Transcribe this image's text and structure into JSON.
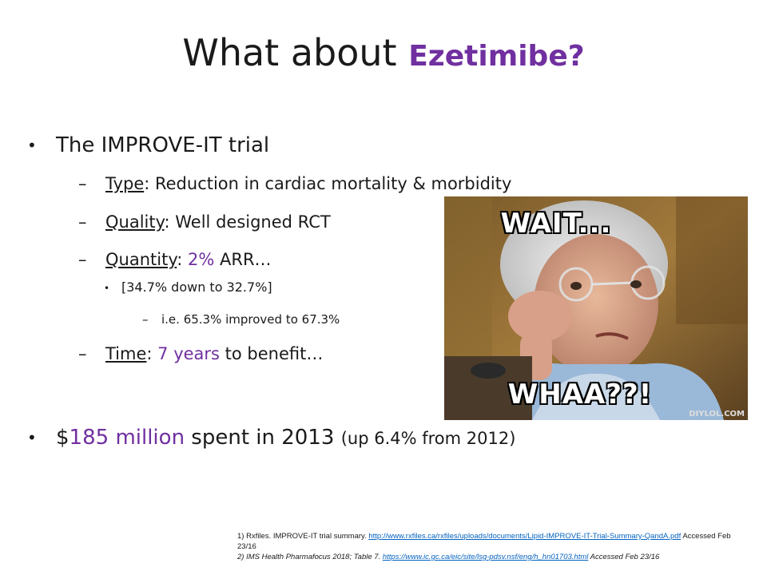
{
  "title": {
    "main": "What about ",
    "accent": "Ezetimibe?"
  },
  "bullets": {
    "trial": "The IMPROVE-IT trial",
    "type_label": "Type",
    "type_text": ": Reduction in cardiac mortality & morbidity",
    "quality_label": "Quality",
    "quality_text": ": Well designed RCT",
    "quantity_label": "Quantity",
    "quantity_sep": ": ",
    "quantity_value": "2%",
    "quantity_text": " ARR…",
    "sub_range": "[34.7% down to 32.7%]",
    "sub_ie": "i.e. 65.3% improved to 67.3%",
    "time_label": "Time",
    "time_sep": ":  ",
    "time_value": "7 years",
    "time_text": " to benefit…",
    "spend_dollar": "$",
    "spend_value": "185 million",
    "spend_text": " spent in 2013 ",
    "spend_note": "(up 6.4% from 2012)"
  },
  "meme": {
    "top_text": "WAIT...",
    "bottom_text": "WHAA??!",
    "watermark": "DIYLOL.COM"
  },
  "references": {
    "ref1_text": "1) Rxfiles. IMPROVE-IT trial summary.  ",
    "ref1_link": "http://www.rxfiles.ca/rxfiles/uploads/documents/Lipid-IMPROVE-IT-Trial-Summary-QandA.pdf",
    "ref1_accessed": "  Accessed Feb 23/16",
    "ref2_text": "2) IMS Health Pharmafocus 2018;  Table 7.  ",
    "ref2_link": "https://www.ic.gc.ca/eic/site/lsg-pdsv.nsf/eng/h_hn01703.html",
    "ref2_accessed": "  Accessed Feb 23/16"
  },
  "colors": {
    "accent": "#7030a0",
    "link": "#0563c1"
  }
}
